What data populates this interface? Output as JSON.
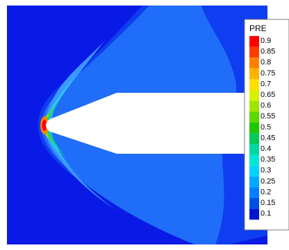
{
  "legend": {
    "title": "PRE",
    "levels": [
      {
        "label": "0.9",
        "color": "#ff0000"
      },
      {
        "label": "0.85",
        "color": "#ff3c00"
      },
      {
        "label": "0.8",
        "color": "#ff8000"
      },
      {
        "label": "0.75",
        "color": "#ffb000"
      },
      {
        "label": "0.7",
        "color": "#ffe000"
      },
      {
        "label": "0.65",
        "color": "#d6f000"
      },
      {
        "label": "0.6",
        "color": "#9ee600"
      },
      {
        "label": "0.55",
        "color": "#5ad800"
      },
      {
        "label": "0.5",
        "color": "#1ec800"
      },
      {
        "label": "0.45",
        "color": "#00c85a"
      },
      {
        "label": "0.4",
        "color": "#00d6a0"
      },
      {
        "label": "0.35",
        "color": "#00e6d6"
      },
      {
        "label": "0.3",
        "color": "#00d2ff"
      },
      {
        "label": "0.25",
        "color": "#00aaff"
      },
      {
        "label": "0.2",
        "color": "#0080ff"
      },
      {
        "label": "0.15",
        "color": "#0050e6"
      },
      {
        "label": "0.1",
        "color": "#0014d2"
      }
    ]
  }
}
